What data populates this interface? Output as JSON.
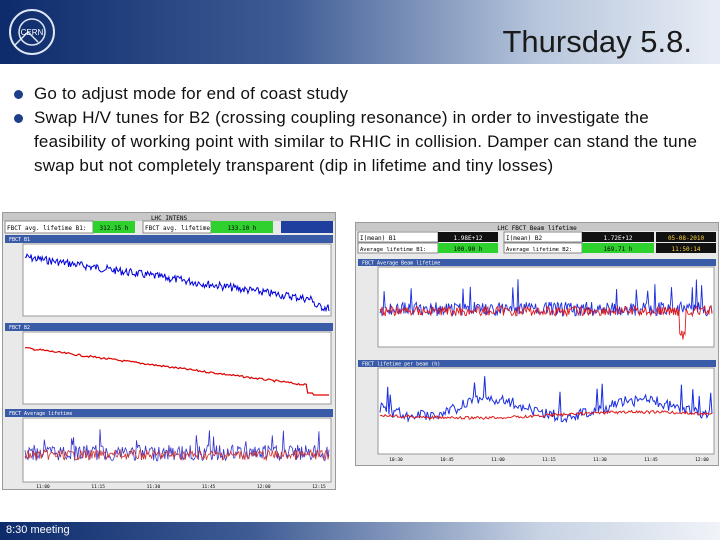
{
  "slide": {
    "title": "Thursday 5.8.",
    "bullets": [
      "Go to adjust mode for end of coast study",
      "Swap H/V tunes for B2 (crossing coupling resonance) in order to investigate the feasibility of working point with similar to RHIC in collision. Damper can stand the tune swap but not completely transparent (dip in lifetime and tiny losses)"
    ],
    "footer": "8:30 meeting"
  },
  "left_display": {
    "title": "LHC INTENS",
    "lifetime_b1_label": "FBCT avg. lifetime B1:",
    "lifetime_b1_value": "312.15 h",
    "lifetime_b2_label": "FBCT avg. lifetime B2:",
    "lifetime_b2_value": "133.10 h",
    "plots": [
      {
        "title": "FBCT B1",
        "color": "#0000dd"
      },
      {
        "title": "FBCT B2",
        "color": "#dd0000"
      },
      {
        "title": "FBCT Average lifetime",
        "color": "#3333cc"
      }
    ],
    "x_ticks": [
      "11:00",
      "11:15",
      "11:30",
      "11:45",
      "12:00",
      "12:15"
    ]
  },
  "right_display": {
    "title": "LHC FBCT Beam lifetime",
    "row1": [
      "I(mean) B1",
      "1.98E+12",
      "I(mean) B2",
      "1.72E+12",
      "05-08-2010"
    ],
    "row2": [
      "Average lifetime B1:",
      "100.90 h",
      "Average lifetime B2:",
      "169.71 h",
      "11:50:14"
    ],
    "plots": [
      {
        "title": "FBCT Average Beam lifetime"
      },
      {
        "title": "FBCT lifetime per beam (h)"
      }
    ],
    "x_ticks": [
      "10:30",
      "10:45",
      "11:00",
      "11:15",
      "11:30",
      "11:45",
      "12:00"
    ]
  },
  "colors": {
    "b1": "#1a2ee0",
    "b2": "#e01a1a",
    "accent": "#1d3f8a"
  }
}
